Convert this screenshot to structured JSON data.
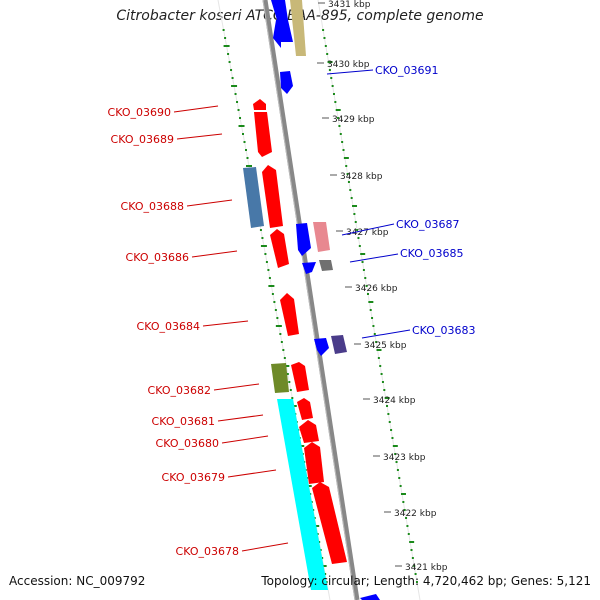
{
  "title": "Citrobacter koseri ATCC BAA-895, complete genome",
  "footer": {
    "accession": "Accession: NC_009792",
    "topology": "Topology: circular; Length: 4,720,462 bp; Genes: 5,121"
  },
  "colors": {
    "backbone": "#8c8c8c",
    "forward_genes": "#ff0000",
    "reverse_genes": "#0000ff",
    "forward_labels": "#cc0000",
    "reverse_labels": "#0000cc",
    "gc_ticks": "#1a8a1a"
  },
  "ticks": [
    "3431 kbp",
    "3430 kbp",
    "3429 kbp",
    "3428 kbp",
    "3427 kbp",
    "3426 kbp",
    "3425 kbp",
    "3424 kbp",
    "3423 kbp",
    "3422 kbp",
    "3421 kbp"
  ],
  "reverse_labels": [
    "CKO_03691",
    "CKO_03687",
    "CKO_03685",
    "CKO_03683"
  ],
  "forward_labels": [
    "CKO_03690",
    "CKO_03689",
    "CKO_03688",
    "CKO_03686",
    "CKO_03684",
    "CKO_03682",
    "CKO_03681",
    "CKO_03680",
    "CKO_03679",
    "CKO_03678"
  ]
}
